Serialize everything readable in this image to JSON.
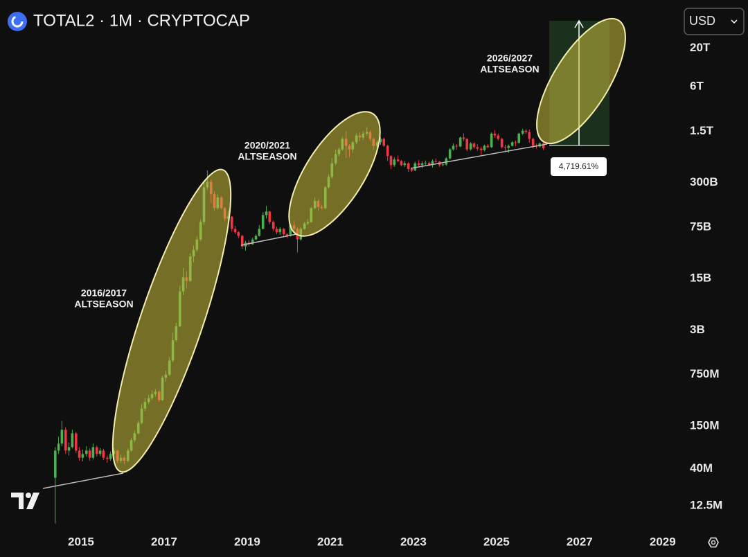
{
  "chart_data": {
    "type": "candlestick",
    "title": "TOTAL2 · 1M · CRYPTOCAP",
    "currency": "USD",
    "log_scale": true,
    "grid": false,
    "up_color": "#4caf50",
    "down_color": "#f23645",
    "xlim": [
      2013.05,
      2029.47
    ],
    "xticks": [
      2015,
      2017,
      2019,
      2021,
      2023,
      2025,
      2027,
      2029
    ],
    "ylim": [
      6000000.0,
      90000000000000.0
    ],
    "yticks": [
      {
        "value": 20000000000000.0,
        "label": "20T"
      },
      {
        "value": 6000000000000.0,
        "label": "6T"
      },
      {
        "value": 1500000000000.0,
        "label": "1.5T"
      },
      {
        "value": 300000000000.0,
        "label": "300B"
      },
      {
        "value": 75000000000.0,
        "label": "75B"
      },
      {
        "value": 15000000000.0,
        "label": "15B"
      },
      {
        "value": 3000000000.0,
        "label": "3B"
      },
      {
        "value": 750000000.0,
        "label": "750M"
      },
      {
        "value": 150000000.0,
        "label": "150M"
      },
      {
        "value": 40000000.0,
        "label": "40M"
      },
      {
        "value": 12500000.0,
        "label": "12.5M"
      }
    ],
    "annotations": [
      {
        "lines": [
          "2016/2017",
          "ALTSEASON"
        ]
      },
      {
        "lines": [
          "2020/2021",
          "ALTSEASON"
        ]
      },
      {
        "lines": [
          "2026/2027",
          "ALTSEASON"
        ]
      }
    ],
    "measure_label": "4,719.61%",
    "candles": [
      [
        2014.38,
        30000000.0,
        78000000.0,
        7200000.0,
        70000000.0
      ],
      [
        2014.46,
        70000000.0,
        108000000.0,
        63000000.0,
        87000000.0
      ],
      [
        2014.54,
        87000000.0,
        177000000.0,
        80000000.0,
        134000000.0
      ],
      [
        2014.63,
        134000000.0,
        145000000.0,
        63000000.0,
        70000000.0
      ],
      [
        2014.71,
        70000000.0,
        90000000.0,
        60000000.0,
        78000000.0
      ],
      [
        2014.79,
        78000000.0,
        134000000.0,
        75000000.0,
        120000000.0
      ],
      [
        2014.88,
        120000000.0,
        125000000.0,
        65000000.0,
        70000000.0
      ],
      [
        2014.96,
        70000000.0,
        78000000.0,
        51000000.0,
        56000000.0
      ],
      [
        2015.04,
        56000000.0,
        72000000.0,
        50000000.0,
        63000000.0
      ],
      [
        2015.13,
        63000000.0,
        80000000.0,
        58000000.0,
        70000000.0
      ],
      [
        2015.21,
        70000000.0,
        75000000.0,
        51000000.0,
        56000000.0
      ],
      [
        2015.29,
        56000000.0,
        87000000.0,
        53000000.0,
        78000000.0
      ],
      [
        2015.38,
        78000000.0,
        82000000.0,
        58000000.0,
        63000000.0
      ],
      [
        2015.46,
        63000000.0,
        76000000.0,
        59000000.0,
        70000000.0
      ],
      [
        2015.54,
        70000000.0,
        74000000.0,
        52000000.0,
        56000000.0
      ],
      [
        2015.63,
        56000000.0,
        60000000.0,
        48000000.0,
        54000000.0
      ],
      [
        2015.71,
        54000000.0,
        68000000.0,
        51000000.0,
        63000000.0
      ],
      [
        2015.79,
        63000000.0,
        76000000.0,
        60000000.0,
        70000000.0
      ],
      [
        2015.88,
        70000000.0,
        72000000.0,
        47000000.0,
        51000000.0
      ],
      [
        2015.96,
        51000000.0,
        62000000.0,
        48000000.0,
        56000000.0
      ],
      [
        2016.04,
        56000000.0,
        60000000.0,
        46000000.0,
        51000000.0
      ],
      [
        2016.13,
        51000000.0,
        75000000.0,
        49000000.0,
        70000000.0
      ],
      [
        2016.21,
        70000000.0,
        105000000.0,
        68000000.0,
        97000000.0
      ],
      [
        2016.29,
        97000000.0,
        130000000.0,
        90000000.0,
        120000000.0
      ],
      [
        2016.38,
        120000000.0,
        180000000.0,
        115000000.0,
        166000000.0
      ],
      [
        2016.46,
        166000000.0,
        300000000.0,
        160000000.0,
        260000000.0
      ],
      [
        2016.54,
        260000000.0,
        360000000.0,
        240000000.0,
        320000000.0
      ],
      [
        2016.63,
        320000000.0,
        400000000.0,
        300000000.0,
        360000000.0
      ],
      [
        2016.71,
        360000000.0,
        460000000.0,
        340000000.0,
        410000000.0
      ],
      [
        2016.79,
        410000000.0,
        480000000.0,
        380000000.0,
        440000000.0
      ],
      [
        2016.88,
        440000000.0,
        460000000.0,
        320000000.0,
        340000000.0
      ],
      [
        2016.96,
        340000000.0,
        720000000.0,
        330000000.0,
        680000000.0
      ],
      [
        2017.04,
        680000000.0,
        850000000.0,
        600000000.0,
        750000000.0
      ],
      [
        2017.13,
        750000000.0,
        1300000000.0,
        720000000.0,
        1160000000.0
      ],
      [
        2017.21,
        1160000000.0,
        2800000000.0,
        1100000000.0,
        2200000000.0
      ],
      [
        2017.29,
        2200000000.0,
        3800000000.0,
        2100000000.0,
        3400000000.0
      ],
      [
        2017.38,
        3400000000.0,
        12000000000.0,
        3300000000.0,
        10100000000.0
      ],
      [
        2017.46,
        10100000000.0,
        21000000000.0,
        9000000000.0,
        15600000000.0
      ],
      [
        2017.54,
        15600000000.0,
        19000000000.0,
        11000000000.0,
        14000000000.0
      ],
      [
        2017.63,
        14000000000.0,
        33000000000.0,
        13500000000.0,
        30000000000.0
      ],
      [
        2017.71,
        30000000000.0,
        42000000000.0,
        25000000000.0,
        37000000000.0
      ],
      [
        2017.79,
        37000000000.0,
        56000000000.0,
        35000000000.0,
        51000000000.0
      ],
      [
        2017.88,
        51000000000.0,
        95000000000.0,
        48000000000.0,
        88000000000.0
      ],
      [
        2017.96,
        88000000000.0,
        320000000000.0,
        80000000000.0,
        260000000000.0
      ],
      [
        2018.04,
        260000000000.0,
        440000000000.0,
        240000000000.0,
        308000000000.0
      ],
      [
        2018.13,
        308000000000.0,
        330000000000.0,
        160000000000.0,
        210000000000.0
      ],
      [
        2018.21,
        210000000000.0,
        230000000000.0,
        125000000000.0,
        136000000000.0
      ],
      [
        2018.29,
        136000000000.0,
        210000000000.0,
        130000000000.0,
        190000000000.0
      ],
      [
        2018.38,
        190000000000.0,
        200000000000.0,
        130000000000.0,
        136000000000.0
      ],
      [
        2018.46,
        136000000000.0,
        140000000000.0,
        90000000000.0,
        98000000000.0
      ],
      [
        2018.54,
        98000000000.0,
        125000000000.0,
        93000000000.0,
        104000000000.0
      ],
      [
        2018.63,
        104000000000.0,
        106000000000.0,
        65000000000.0,
        71000000000.0
      ],
      [
        2018.71,
        71000000000.0,
        78000000000.0,
        60000000000.0,
        64000000000.0
      ],
      [
        2018.79,
        64000000000.0,
        66000000000.0,
        53000000000.0,
        57000000000.0
      ],
      [
        2018.88,
        57000000000.0,
        59000000000.0,
        38000000000.0,
        41000000000.0
      ],
      [
        2018.96,
        41000000000.0,
        49000000000.0,
        36000000000.0,
        46000000000.0
      ],
      [
        2019.04,
        46000000000.0,
        50000000000.0,
        41000000000.0,
        44000000000.0
      ],
      [
        2019.13,
        44000000000.0,
        54000000000.0,
        43000000000.0,
        51000000000.0
      ],
      [
        2019.21,
        51000000000.0,
        60000000000.0,
        50000000000.0,
        57000000000.0
      ],
      [
        2019.29,
        57000000000.0,
        80000000000.0,
        56000000000.0,
        71000000000.0
      ],
      [
        2019.38,
        71000000000.0,
        120000000000.0,
        70000000000.0,
        109000000000.0
      ],
      [
        2019.46,
        109000000000.0,
        145000000000.0,
        98000000000.0,
        122000000000.0
      ],
      [
        2019.54,
        122000000000.0,
        125000000000.0,
        82000000000.0,
        88000000000.0
      ],
      [
        2019.63,
        88000000000.0,
        92000000000.0,
        66000000000.0,
        71000000000.0
      ],
      [
        2019.71,
        71000000000.0,
        76000000000.0,
        60000000000.0,
        64000000000.0
      ],
      [
        2019.79,
        64000000000.0,
        75000000000.0,
        59000000000.0,
        71000000000.0
      ],
      [
        2019.88,
        71000000000.0,
        73000000000.0,
        57000000000.0,
        60000000000.0
      ],
      [
        2019.96,
        60000000000.0,
        62000000000.0,
        53000000000.0,
        57000000000.0
      ],
      [
        2020.04,
        57000000000.0,
        83000000000.0,
        56000000000.0,
        79000000000.0
      ],
      [
        2020.13,
        79000000000.0,
        90000000000.0,
        68000000000.0,
        71000000000.0
      ],
      [
        2020.21,
        71000000000.0,
        75000000000.0,
        34000000000.0,
        51000000000.0
      ],
      [
        2020.29,
        51000000000.0,
        75000000000.0,
        49000000000.0,
        71000000000.0
      ],
      [
        2020.38,
        71000000000.0,
        88000000000.0,
        69000000000.0,
        84000000000.0
      ],
      [
        2020.46,
        84000000000.0,
        96000000000.0,
        80000000000.0,
        88000000000.0
      ],
      [
        2020.54,
        88000000000.0,
        140000000000.0,
        86000000000.0,
        136000000000.0
      ],
      [
        2020.63,
        136000000000.0,
        190000000000.0,
        130000000000.0,
        170000000000.0
      ],
      [
        2020.71,
        170000000000.0,
        180000000000.0,
        125000000000.0,
        141000000000.0
      ],
      [
        2020.79,
        141000000000.0,
        150000000000.0,
        130000000000.0,
        136000000000.0
      ],
      [
        2020.88,
        136000000000.0,
        270000000000.0,
        130000000000.0,
        260000000000.0
      ],
      [
        2020.96,
        260000000000.0,
        390000000000.0,
        250000000000.0,
        360000000000.0
      ],
      [
        2021.04,
        360000000000.0,
        650000000000.0,
        340000000000.0,
        550000000000.0
      ],
      [
        2021.13,
        550000000000.0,
        850000000000.0,
        520000000000.0,
        730000000000.0
      ],
      [
        2021.21,
        730000000000.0,
        900000000000.0,
        680000000000.0,
        850000000000.0
      ],
      [
        2021.29,
        850000000000.0,
        1250000000000.0,
        820000000000.0,
        1180000000000.0
      ],
      [
        2021.38,
        1180000000000.0,
        1500000000000.0,
        650000000000.0,
        950000000000.0
      ],
      [
        2021.46,
        950000000000.0,
        1000000000000.0,
        660000000000.0,
        850000000000.0
      ],
      [
        2021.54,
        850000000000.0,
        1100000000000.0,
        760000000000.0,
        1060000000000.0
      ],
      [
        2021.63,
        1060000000000.0,
        1400000000000.0,
        1000000000000.0,
        1310000000000.0
      ],
      [
        2021.71,
        1310000000000.0,
        1450000000000.0,
        1100000000000.0,
        1230000000000.0
      ],
      [
        2021.79,
        1230000000000.0,
        1500000000000.0,
        1150000000000.0,
        1390000000000.0
      ],
      [
        2021.88,
        1390000000000.0,
        1700000000000.0,
        1300000000000.0,
        1460000000000.0
      ],
      [
        2021.96,
        1460000000000.0,
        1550000000000.0,
        1100000000000.0,
        1180000000000.0
      ],
      [
        2022.04,
        1180000000000.0,
        1220000000000.0,
        840000000000.0,
        950000000000.0
      ],
      [
        2022.13,
        950000000000.0,
        1120000000000.0,
        860000000000.0,
        1060000000000.0
      ],
      [
        2022.21,
        1060000000000.0,
        1250000000000.0,
        980000000000.0,
        1180000000000.0
      ],
      [
        2022.29,
        1180000000000.0,
        1220000000000.0,
        920000000000.0,
        950000000000.0
      ],
      [
        2022.38,
        950000000000.0,
        980000000000.0,
        590000000000.0,
        690000000000.0
      ],
      [
        2022.46,
        690000000000.0,
        710000000000.0,
        460000000000.0,
        520000000000.0
      ],
      [
        2022.54,
        520000000000.0,
        660000000000.0,
        490000000000.0,
        620000000000.0
      ],
      [
        2022.63,
        620000000000.0,
        700000000000.0,
        570000000000.0,
        590000000000.0
      ],
      [
        2022.71,
        590000000000.0,
        610000000000.0,
        500000000000.0,
        520000000000.0
      ],
      [
        2022.79,
        520000000000.0,
        590000000000.0,
        490000000000.0,
        550000000000.0
      ],
      [
        2022.88,
        550000000000.0,
        570000000000.0,
        420000000000.0,
        460000000000.0
      ],
      [
        2022.96,
        460000000000.0,
        480000000000.0,
        420000000000.0,
        440000000000.0
      ],
      [
        2023.04,
        440000000000.0,
        580000000000.0,
        430000000000.0,
        550000000000.0
      ],
      [
        2023.13,
        550000000000.0,
        610000000000.0,
        500000000000.0,
        520000000000.0
      ],
      [
        2023.21,
        520000000000.0,
        590000000000.0,
        470000000000.0,
        550000000000.0
      ],
      [
        2023.29,
        550000000000.0,
        600000000000.0,
        520000000000.0,
        560000000000.0
      ],
      [
        2023.38,
        560000000000.0,
        580000000000.0,
        500000000000.0,
        520000000000.0
      ],
      [
        2023.46,
        520000000000.0,
        620000000000.0,
        480000000000.0,
        590000000000.0
      ],
      [
        2023.54,
        590000000000.0,
        640000000000.0,
        560000000000.0,
        580000000000.0
      ],
      [
        2023.63,
        580000000000.0,
        590000000000.0,
        490000000000.0,
        520000000000.0
      ],
      [
        2023.71,
        520000000000.0,
        560000000000.0,
        500000000000.0,
        530000000000.0
      ],
      [
        2023.79,
        530000000000.0,
        670000000000.0,
        510000000000.0,
        640000000000.0
      ],
      [
        2023.88,
        640000000000.0,
        880000000000.0,
        620000000000.0,
        850000000000.0
      ],
      [
        2023.96,
        850000000000.0,
        1020000000000.0,
        820000000000.0,
        950000000000.0
      ],
      [
        2024.04,
        950000000000.0,
        1000000000000.0,
        840000000000.0,
        930000000000.0
      ],
      [
        2024.13,
        930000000000.0,
        1270000000000.0,
        910000000000.0,
        1230000000000.0
      ],
      [
        2024.21,
        1230000000000.0,
        1400000000000.0,
        1100000000000.0,
        1180000000000.0
      ],
      [
        2024.29,
        1180000000000.0,
        1200000000000.0,
        800000000000.0,
        850000000000.0
      ],
      [
        2024.38,
        850000000000.0,
        1070000000000.0,
        820000000000.0,
        1020000000000.0
      ],
      [
        2024.46,
        1020000000000.0,
        1060000000000.0,
        870000000000.0,
        910000000000.0
      ],
      [
        2024.54,
        910000000000.0,
        1000000000000.0,
        810000000000.0,
        870000000000.0
      ],
      [
        2024.63,
        870000000000.0,
        920000000000.0,
        720000000000.0,
        830000000000.0
      ],
      [
        2024.71,
        830000000000.0,
        980000000000.0,
        800000000000.0,
        950000000000.0
      ],
      [
        2024.79,
        950000000000.0,
        1000000000000.0,
        880000000000.0,
        910000000000.0
      ],
      [
        2024.88,
        910000000000.0,
        1450000000000.0,
        890000000000.0,
        1390000000000.0
      ],
      [
        2024.96,
        1390000000000.0,
        1550000000000.0,
        1220000000000.0,
        1310000000000.0
      ],
      [
        2025.04,
        1310000000000.0,
        1400000000000.0,
        1120000000000.0,
        1180000000000.0
      ],
      [
        2025.13,
        1180000000000.0,
        1220000000000.0,
        870000000000.0,
        910000000000.0
      ],
      [
        2025.21,
        910000000000.0,
        980000000000.0,
        790000000000.0,
        890000000000.0
      ],
      [
        2025.29,
        890000000000.0,
        990000000000.0,
        760000000000.0,
        950000000000.0
      ],
      [
        2025.38,
        950000000000.0,
        1100000000000.0,
        930000000000.0,
        1060000000000.0
      ],
      [
        2025.46,
        1060000000000.0,
        1120000000000.0,
        940000000000.0,
        1040000000000.0
      ],
      [
        2025.54,
        1040000000000.0,
        1430000000000.0,
        1020000000000.0,
        1390000000000.0
      ],
      [
        2025.63,
        1390000000000.0,
        1620000000000.0,
        1330000000000.0,
        1520000000000.0
      ],
      [
        2025.71,
        1520000000000.0,
        1600000000000.0,
        1380000000000.0,
        1460000000000.0
      ],
      [
        2025.79,
        1460000000000.0,
        1580000000000.0,
        1050000000000.0,
        1180000000000.0
      ],
      [
        2025.88,
        1180000000000.0,
        1220000000000.0,
        880000000000.0,
        950000000000.0
      ],
      [
        2025.96,
        950000000000.0,
        1020000000000.0,
        870000000000.0,
        930000000000.0
      ],
      [
        2026.04,
        930000000000.0,
        1060000000000.0,
        900000000000.0,
        1020000000000.0
      ],
      [
        2026.13,
        1020000000000.0,
        1050000000000.0,
        830000000000.0,
        880000000000.0
      ]
    ]
  }
}
